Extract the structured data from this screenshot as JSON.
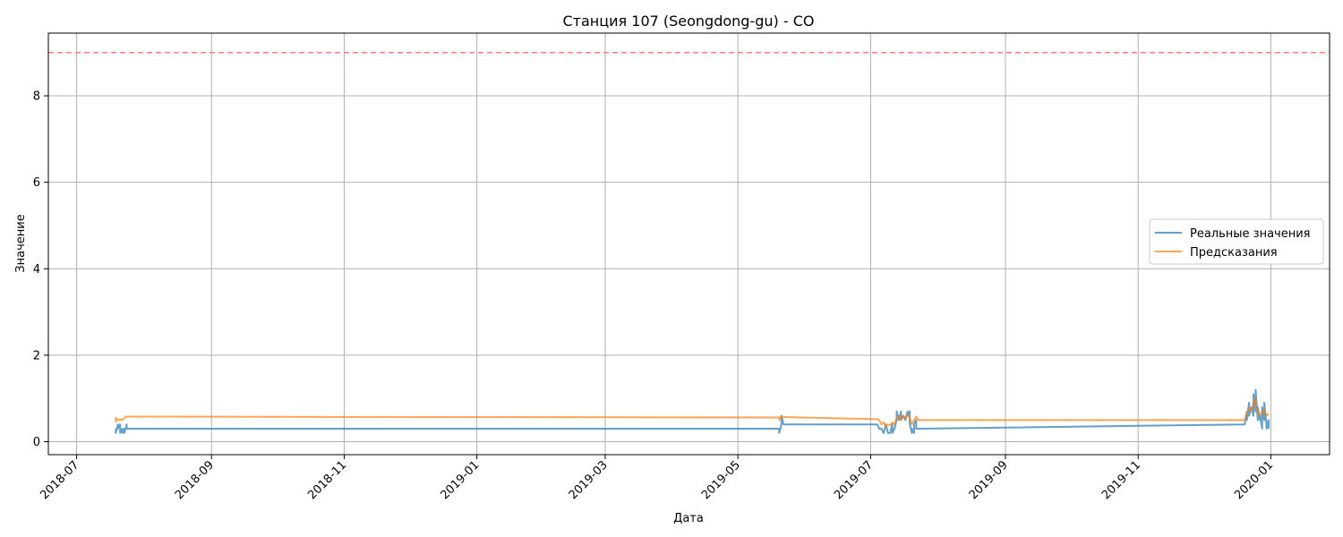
{
  "chart_data": {
    "type": "line",
    "title": "Станция 107 (Seongdong-gu) - CO",
    "xlabel": "Дата",
    "ylabel": "Значение",
    "xlim": [
      "2018-06-18",
      "2020-01-28"
    ],
    "ylim": [
      -0.3,
      9.45
    ],
    "x_ticks": [
      "2018-07",
      "2018-09",
      "2018-11",
      "2019-01",
      "2019-03",
      "2019-05",
      "2019-07",
      "2019-09",
      "2019-11",
      "2020-01"
    ],
    "y_ticks": [
      0,
      2,
      4,
      6,
      8
    ],
    "grid": true,
    "legend_position": "center-right",
    "threshold": {
      "y": 9,
      "color": "#ff7f7f",
      "style": "dashed"
    },
    "series": [
      {
        "name": "Реальные значения",
        "color": "#1f77b4",
        "points": [
          [
            "2018-07-19",
            0.3
          ],
          [
            "2018-07-19",
            0.2
          ],
          [
            "2018-07-20",
            0.4
          ],
          [
            "2018-07-20",
            0.3
          ],
          [
            "2018-07-21",
            0.4
          ],
          [
            "2018-07-21",
            0.2
          ],
          [
            "2018-07-22",
            0.3
          ],
          [
            "2018-07-22",
            0.2
          ],
          [
            "2018-07-23",
            0.3
          ],
          [
            "2018-07-23",
            0.2
          ],
          [
            "2018-07-24",
            0.4
          ],
          [
            "2018-07-24",
            0.3
          ],
          [
            "2019-05-20",
            0.3
          ],
          [
            "2019-05-20",
            0.2
          ],
          [
            "2019-05-21",
            0.4
          ],
          [
            "2019-05-21",
            0.6
          ],
          [
            "2019-05-22",
            0.4
          ],
          [
            "2019-05-23",
            0.4
          ],
          [
            "2019-07-04",
            0.4
          ],
          [
            "2019-07-05",
            0.3
          ],
          [
            "2019-07-06",
            0.3
          ],
          [
            "2019-07-07",
            0.2
          ],
          [
            "2019-07-08",
            0.4
          ],
          [
            "2019-07-09",
            0.2
          ],
          [
            "2019-07-10",
            0.2
          ],
          [
            "2019-07-11",
            0.4
          ],
          [
            "2019-07-11",
            0.2
          ],
          [
            "2019-07-12",
            0.3
          ],
          [
            "2019-07-13",
            0.5
          ],
          [
            "2019-07-13",
            0.7
          ],
          [
            "2019-07-14",
            0.5
          ],
          [
            "2019-07-15",
            0.7
          ],
          [
            "2019-07-15",
            0.5
          ],
          [
            "2019-07-16",
            0.6
          ],
          [
            "2019-07-17",
            0.5
          ],
          [
            "2019-07-18",
            0.7
          ],
          [
            "2019-07-18",
            0.6
          ],
          [
            "2019-07-19",
            0.7
          ],
          [
            "2019-07-19",
            0.4
          ],
          [
            "2019-07-20",
            0.2
          ],
          [
            "2019-07-20",
            0.3
          ],
          [
            "2019-07-21",
            0.2
          ],
          [
            "2019-07-21",
            0.4
          ],
          [
            "2019-07-22",
            0.5
          ],
          [
            "2019-07-22",
            0.3
          ],
          [
            "2019-07-23",
            0.3
          ],
          [
            "2019-12-20",
            0.4
          ],
          [
            "2019-12-21",
            0.7
          ],
          [
            "2019-12-21",
            0.5
          ],
          [
            "2019-12-22",
            0.9
          ],
          [
            "2019-12-22",
            0.6
          ],
          [
            "2019-12-23",
            0.8
          ],
          [
            "2019-12-24",
            0.6
          ],
          [
            "2019-12-24",
            1.1
          ],
          [
            "2019-12-25",
            0.7
          ],
          [
            "2019-12-25",
            1.2
          ],
          [
            "2019-12-26",
            0.5
          ],
          [
            "2019-12-26",
            0.8
          ],
          [
            "2019-12-27",
            0.5
          ],
          [
            "2019-12-27",
            0.6
          ],
          [
            "2019-12-28",
            0.3
          ],
          [
            "2019-12-28",
            0.8
          ],
          [
            "2019-12-29",
            0.5
          ],
          [
            "2019-12-29",
            0.9
          ],
          [
            "2019-12-30",
            0.4
          ],
          [
            "2019-12-30",
            0.3
          ],
          [
            "2019-12-31",
            0.5
          ],
          [
            "2019-12-31",
            0.3
          ]
        ]
      },
      {
        "name": "Предсказания",
        "color": "#ff7f0e",
        "points": [
          [
            "2018-07-19",
            0.45
          ],
          [
            "2018-07-19",
            0.55
          ],
          [
            "2018-07-20",
            0.5
          ],
          [
            "2018-07-21",
            0.52
          ],
          [
            "2018-07-22",
            0.5
          ],
          [
            "2018-07-23",
            0.55
          ],
          [
            "2018-07-24",
            0.58
          ],
          [
            "2018-07-25",
            0.58
          ],
          [
            "2019-05-20",
            0.56
          ],
          [
            "2019-05-20",
            0.5
          ],
          [
            "2019-05-21",
            0.6
          ],
          [
            "2019-05-21",
            0.55
          ],
          [
            "2019-05-22",
            0.57
          ],
          [
            "2019-07-04",
            0.52
          ],
          [
            "2019-07-05",
            0.5
          ],
          [
            "2019-07-06",
            0.4
          ],
          [
            "2019-07-07",
            0.45
          ],
          [
            "2019-07-08",
            0.35
          ],
          [
            "2019-07-09",
            0.4
          ],
          [
            "2019-07-10",
            0.38
          ],
          [
            "2019-07-11",
            0.45
          ],
          [
            "2019-07-12",
            0.4
          ],
          [
            "2019-07-13",
            0.55
          ],
          [
            "2019-07-14",
            0.6
          ],
          [
            "2019-07-15",
            0.5
          ],
          [
            "2019-07-16",
            0.6
          ],
          [
            "2019-07-17",
            0.55
          ],
          [
            "2019-07-18",
            0.62
          ],
          [
            "2019-07-19",
            0.55
          ],
          [
            "2019-07-20",
            0.4
          ],
          [
            "2019-07-21",
            0.5
          ],
          [
            "2019-07-22",
            0.58
          ],
          [
            "2019-07-23",
            0.5
          ],
          [
            "2019-12-20",
            0.5
          ],
          [
            "2019-12-21",
            0.65
          ],
          [
            "2019-12-22",
            0.75
          ],
          [
            "2019-12-23",
            0.7
          ],
          [
            "2019-12-24",
            0.9
          ],
          [
            "2019-12-25",
            1.0
          ],
          [
            "2019-12-25",
            0.8
          ],
          [
            "2019-12-26",
            0.7
          ],
          [
            "2019-12-27",
            0.6
          ],
          [
            "2019-12-28",
            0.7
          ],
          [
            "2019-12-29",
            0.75
          ],
          [
            "2019-12-30",
            0.6
          ],
          [
            "2019-12-31",
            0.65
          ]
        ]
      }
    ]
  }
}
